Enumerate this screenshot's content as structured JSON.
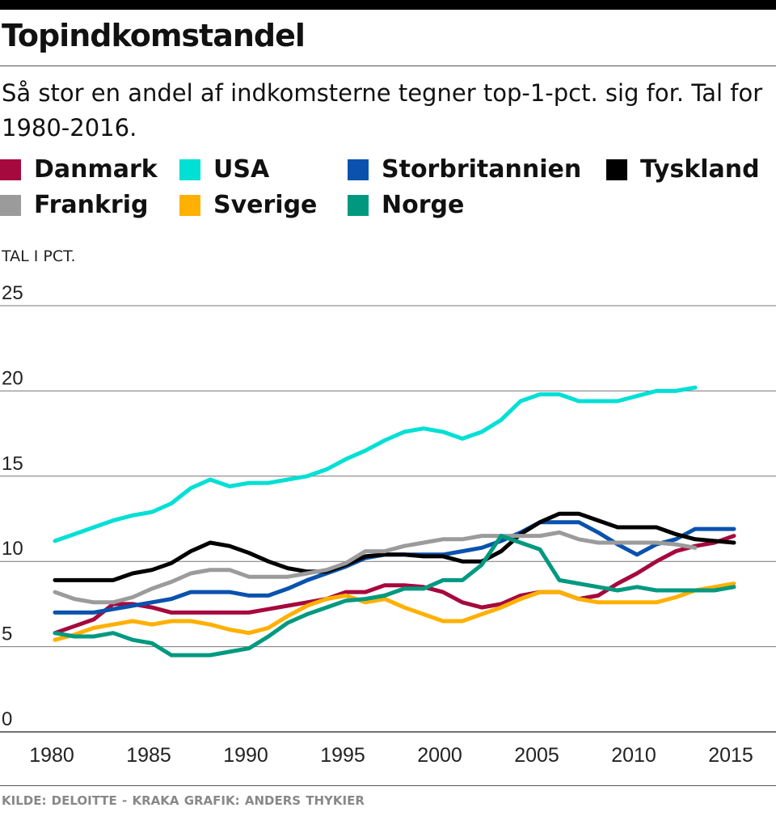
{
  "title": "Topindkomstandel",
  "subtitle": "Så stor en andel af indkomsterne tegner top-1-pct. sig for. Tal for 1980-2016.",
  "footer": "KILDE: DELOITTE - KRAKA    GRAFIK: ANDERS THYKIER",
  "chart_data": {
    "type": "line",
    "ylabel": "TAL I PCT.",
    "ylim": [
      0,
      25
    ],
    "yticks": [
      "0",
      "5",
      "10",
      "15",
      "20",
      "25"
    ],
    "xlim": [
      1980,
      2015
    ],
    "xticks": [
      "1980",
      "1985",
      "1990",
      "1995",
      "2000",
      "2005",
      "2010",
      "2015"
    ],
    "grid": true,
    "legend_position": "top",
    "x_start": 1980,
    "series": [
      {
        "name": "Danmark",
        "color": "#a6093d",
        "values": [
          5.8,
          6.2,
          6.6,
          7.5,
          7.5,
          7.3,
          7.0,
          7.0,
          7.0,
          7.0,
          7.0,
          7.2,
          7.4,
          7.6,
          7.8,
          8.2,
          8.2,
          8.6,
          8.6,
          8.5,
          8.2,
          7.6,
          7.3,
          7.5,
          8.0,
          8.2,
          8.2,
          7.8,
          8.0,
          8.7,
          9.3,
          10.0,
          10.6,
          10.9,
          11.1,
          11.5
        ]
      },
      {
        "name": "USA",
        "color": "#00e0d4",
        "values": [
          11.2,
          11.6,
          12.0,
          12.4,
          12.7,
          12.9,
          13.4,
          14.3,
          14.8,
          14.4,
          14.6,
          14.6,
          14.8,
          15.0,
          15.4,
          16.0,
          16.5,
          17.1,
          17.6,
          17.8,
          17.6,
          17.2,
          17.6,
          18.3,
          19.4,
          19.8,
          19.8,
          19.4,
          19.4,
          19.4,
          19.7,
          20.0,
          20.0,
          20.2
        ]
      },
      {
        "name": "Storbritannien",
        "color": "#0a52ad",
        "values": [
          7.0,
          7.0,
          7.0,
          7.2,
          7.4,
          7.6,
          7.8,
          8.2,
          8.2,
          8.2,
          8.0,
          8.0,
          8.4,
          8.9,
          9.3,
          9.7,
          10.2,
          10.4,
          10.4,
          10.4,
          10.4,
          10.6,
          10.8,
          11.2,
          11.7,
          12.3,
          12.3,
          12.3,
          11.7,
          11.0,
          10.4,
          11.0,
          11.3,
          11.9,
          11.9,
          11.9
        ]
      },
      {
        "name": "Tyskland",
        "color": "#000000",
        "values": [
          8.9,
          8.9,
          8.9,
          8.9,
          9.3,
          9.5,
          9.9,
          10.6,
          11.1,
          10.9,
          10.5,
          10.0,
          9.6,
          9.4,
          9.4,
          9.8,
          10.3,
          10.4,
          10.4,
          10.3,
          10.3,
          10.0,
          10.0,
          10.6,
          11.6,
          12.3,
          12.8,
          12.8,
          12.4,
          12.0,
          12.0,
          12.0,
          11.6,
          11.3,
          11.2,
          11.1
        ]
      },
      {
        "name": "Frankrig",
        "color": "#9b9b9b",
        "values": [
          8.2,
          7.8,
          7.6,
          7.6,
          7.9,
          8.4,
          8.8,
          9.3,
          9.5,
          9.5,
          9.1,
          9.1,
          9.1,
          9.3,
          9.5,
          9.9,
          10.6,
          10.6,
          10.9,
          11.1,
          11.3,
          11.3,
          11.5,
          11.5,
          11.5,
          11.5,
          11.7,
          11.3,
          11.1,
          11.1,
          11.1,
          11.1,
          11.0,
          10.8
        ]
      },
      {
        "name": "Sverige",
        "color": "#ffb000",
        "values": [
          5.4,
          5.7,
          6.1,
          6.3,
          6.5,
          6.3,
          6.5,
          6.5,
          6.3,
          6.0,
          5.8,
          6.1,
          6.8,
          7.4,
          7.8,
          8.0,
          7.6,
          7.8,
          7.3,
          6.9,
          6.5,
          6.5,
          6.9,
          7.3,
          7.8,
          8.2,
          8.2,
          7.8,
          7.6,
          7.6,
          7.6,
          7.6,
          7.9,
          8.3,
          8.5,
          8.7
        ]
      },
      {
        "name": "Norge",
        "color": "#009980",
        "values": [
          5.8,
          5.6,
          5.6,
          5.8,
          5.4,
          5.2,
          4.5,
          4.5,
          4.5,
          4.7,
          4.9,
          5.6,
          6.4,
          6.9,
          7.3,
          7.7,
          7.8,
          8.0,
          8.4,
          8.4,
          8.9,
          8.9,
          9.8,
          11.5,
          11.1,
          10.7,
          8.9,
          8.7,
          8.5,
          8.3,
          8.5,
          8.3,
          8.3,
          8.3,
          8.3,
          8.5
        ]
      }
    ]
  }
}
